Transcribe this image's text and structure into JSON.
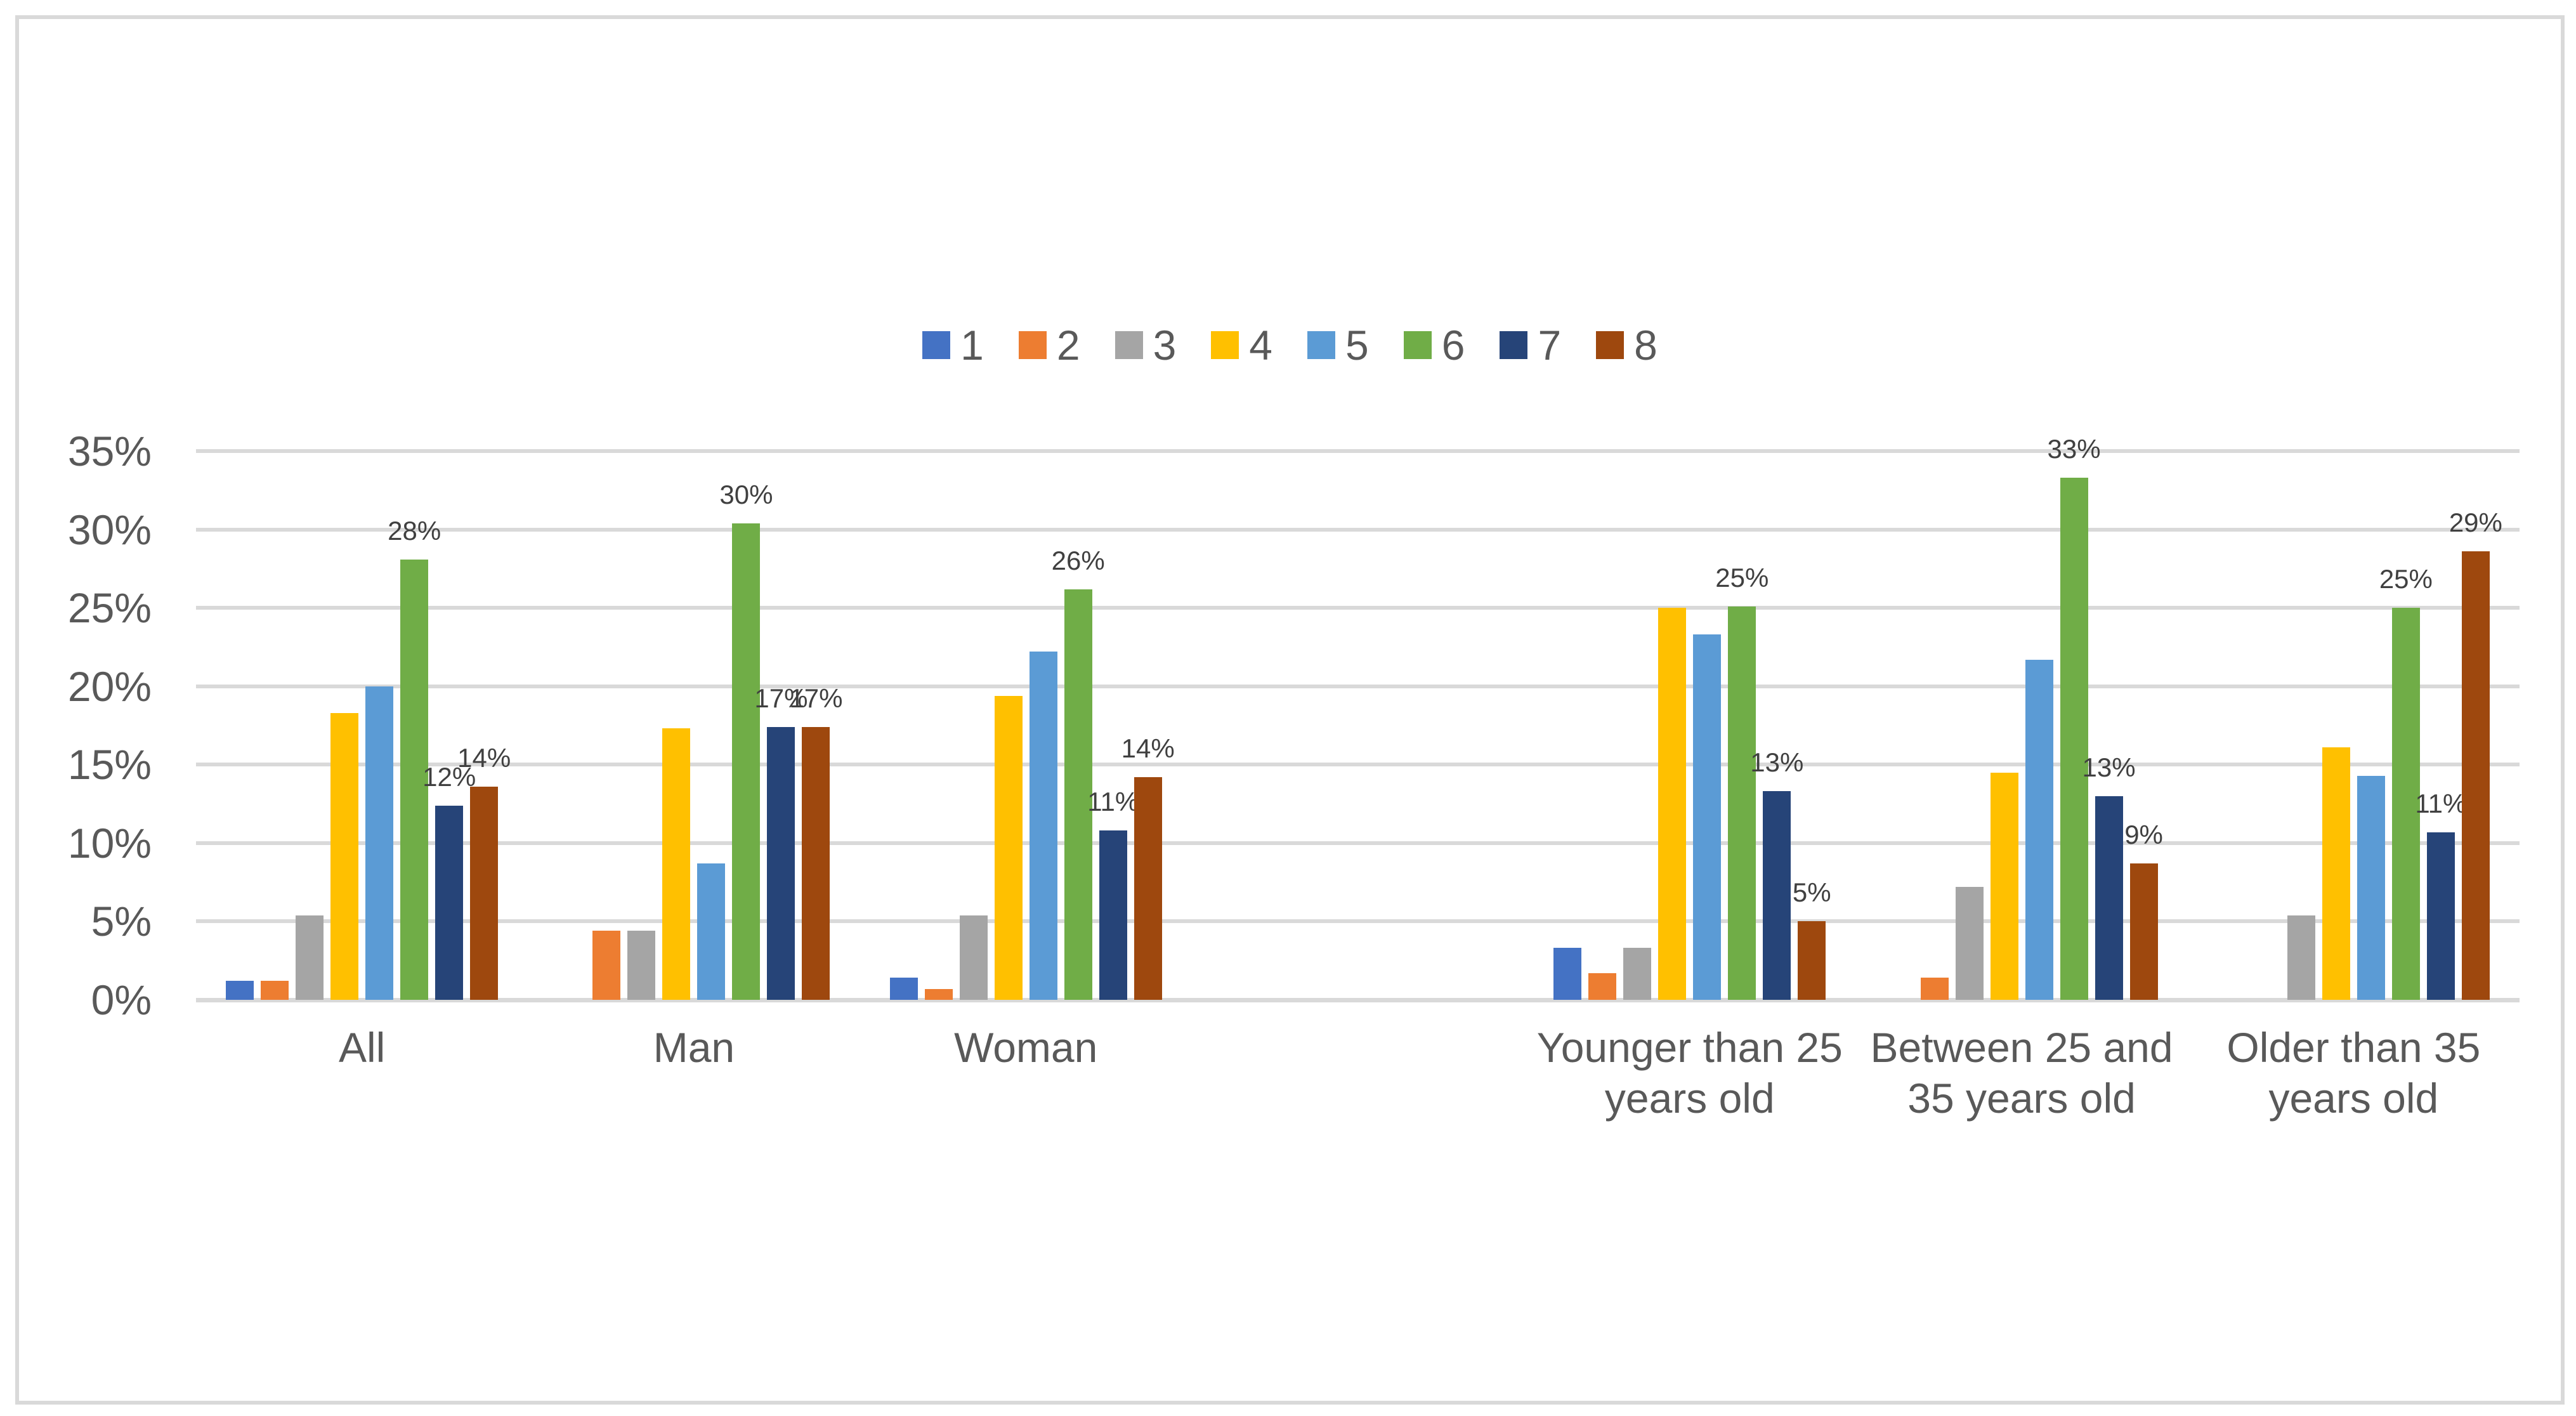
{
  "figure": {
    "background": "#FFFFFF",
    "border_color": "#D9D9D9"
  },
  "legend": {
    "position": "top-center",
    "items": [
      {
        "label": "1",
        "color": "#4472C4"
      },
      {
        "label": "2",
        "color": "#ED7D31"
      },
      {
        "label": "3",
        "color": "#A5A5A5"
      },
      {
        "label": "4",
        "color": "#FFC000"
      },
      {
        "label": "5",
        "color": "#5B9BD5"
      },
      {
        "label": "6",
        "color": "#70AD47"
      },
      {
        "label": "7",
        "color": "#264478"
      },
      {
        "label": "8",
        "color": "#9E480E"
      }
    ]
  },
  "chart_data": {
    "type": "bar",
    "title": "",
    "xlabel": "",
    "ylabel": "",
    "y_axis": {
      "min": 0,
      "max": 35,
      "step": 5,
      "tick_format": "percent",
      "ticks": [
        "0%",
        "5%",
        "10%",
        "15%",
        "20%",
        "25%",
        "30%",
        "35%"
      ],
      "gridlines": true,
      "gridline_color": "#D9D9D9"
    },
    "categories": [
      "All",
      "Man",
      "Woman",
      "",
      "Younger than 25 years old",
      "Between 25 and 35 years old",
      "Older than 35 years old"
    ],
    "category_lines": [
      [
        "All"
      ],
      [
        "Man"
      ],
      [
        "Woman"
      ],
      [],
      [
        "Younger than 25",
        "years old"
      ],
      [
        "Between 25 and",
        "35 years old"
      ],
      [
        "Older than 35",
        "years old"
      ]
    ],
    "series": [
      {
        "name": "1",
        "color": "#4472C4",
        "values": [
          1.2,
          0,
          1.4,
          0,
          3.3,
          0,
          0
        ],
        "labels": [
          "",
          "",
          "",
          "",
          "",
          "",
          ""
        ]
      },
      {
        "name": "2",
        "color": "#ED7D31",
        "values": [
          1.2,
          4.4,
          0.7,
          0,
          1.7,
          1.4,
          0
        ],
        "labels": [
          "",
          "",
          "",
          "",
          "",
          "",
          ""
        ]
      },
      {
        "name": "3",
        "color": "#A5A5A5",
        "values": [
          5.4,
          4.4,
          5.4,
          0,
          3.3,
          7.2,
          5.4
        ],
        "labels": [
          "",
          "",
          "",
          "",
          "",
          "",
          ""
        ]
      },
      {
        "name": "4",
        "color": "#FFC000",
        "values": [
          18.3,
          17.3,
          19.4,
          0,
          25.0,
          14.5,
          16.1
        ],
        "labels": [
          "",
          "",
          "",
          "",
          "",
          "",
          ""
        ]
      },
      {
        "name": "5",
        "color": "#5B9BD5",
        "values": [
          20.0,
          8.7,
          22.2,
          0,
          23.3,
          21.7,
          14.3
        ],
        "labels": [
          "",
          "",
          "",
          "",
          "",
          "",
          ""
        ]
      },
      {
        "name": "6",
        "color": "#70AD47",
        "values": [
          28.1,
          30.4,
          26.2,
          0,
          25.1,
          33.3,
          25.0
        ],
        "labels": [
          "28%",
          "30%",
          "26%",
          "",
          "25%",
          "33%",
          "25%"
        ]
      },
      {
        "name": "7",
        "color": "#264478",
        "values": [
          12.4,
          17.4,
          10.8,
          0,
          13.3,
          13.0,
          10.7
        ],
        "labels": [
          "12%",
          "17%",
          "11%",
          "",
          "13%",
          "13%",
          "11%"
        ]
      },
      {
        "name": "8",
        "color": "#9E480E",
        "values": [
          13.6,
          17.4,
          14.2,
          0,
          5.0,
          8.7,
          28.6
        ],
        "labels": [
          "14%",
          "17%",
          "14%",
          "",
          "5%",
          "9%",
          "29%"
        ]
      }
    ],
    "data_label_series": [
      "6",
      "7",
      "8"
    ],
    "text_colors": {
      "axis": "#595959",
      "data_labels": "#404040"
    }
  }
}
